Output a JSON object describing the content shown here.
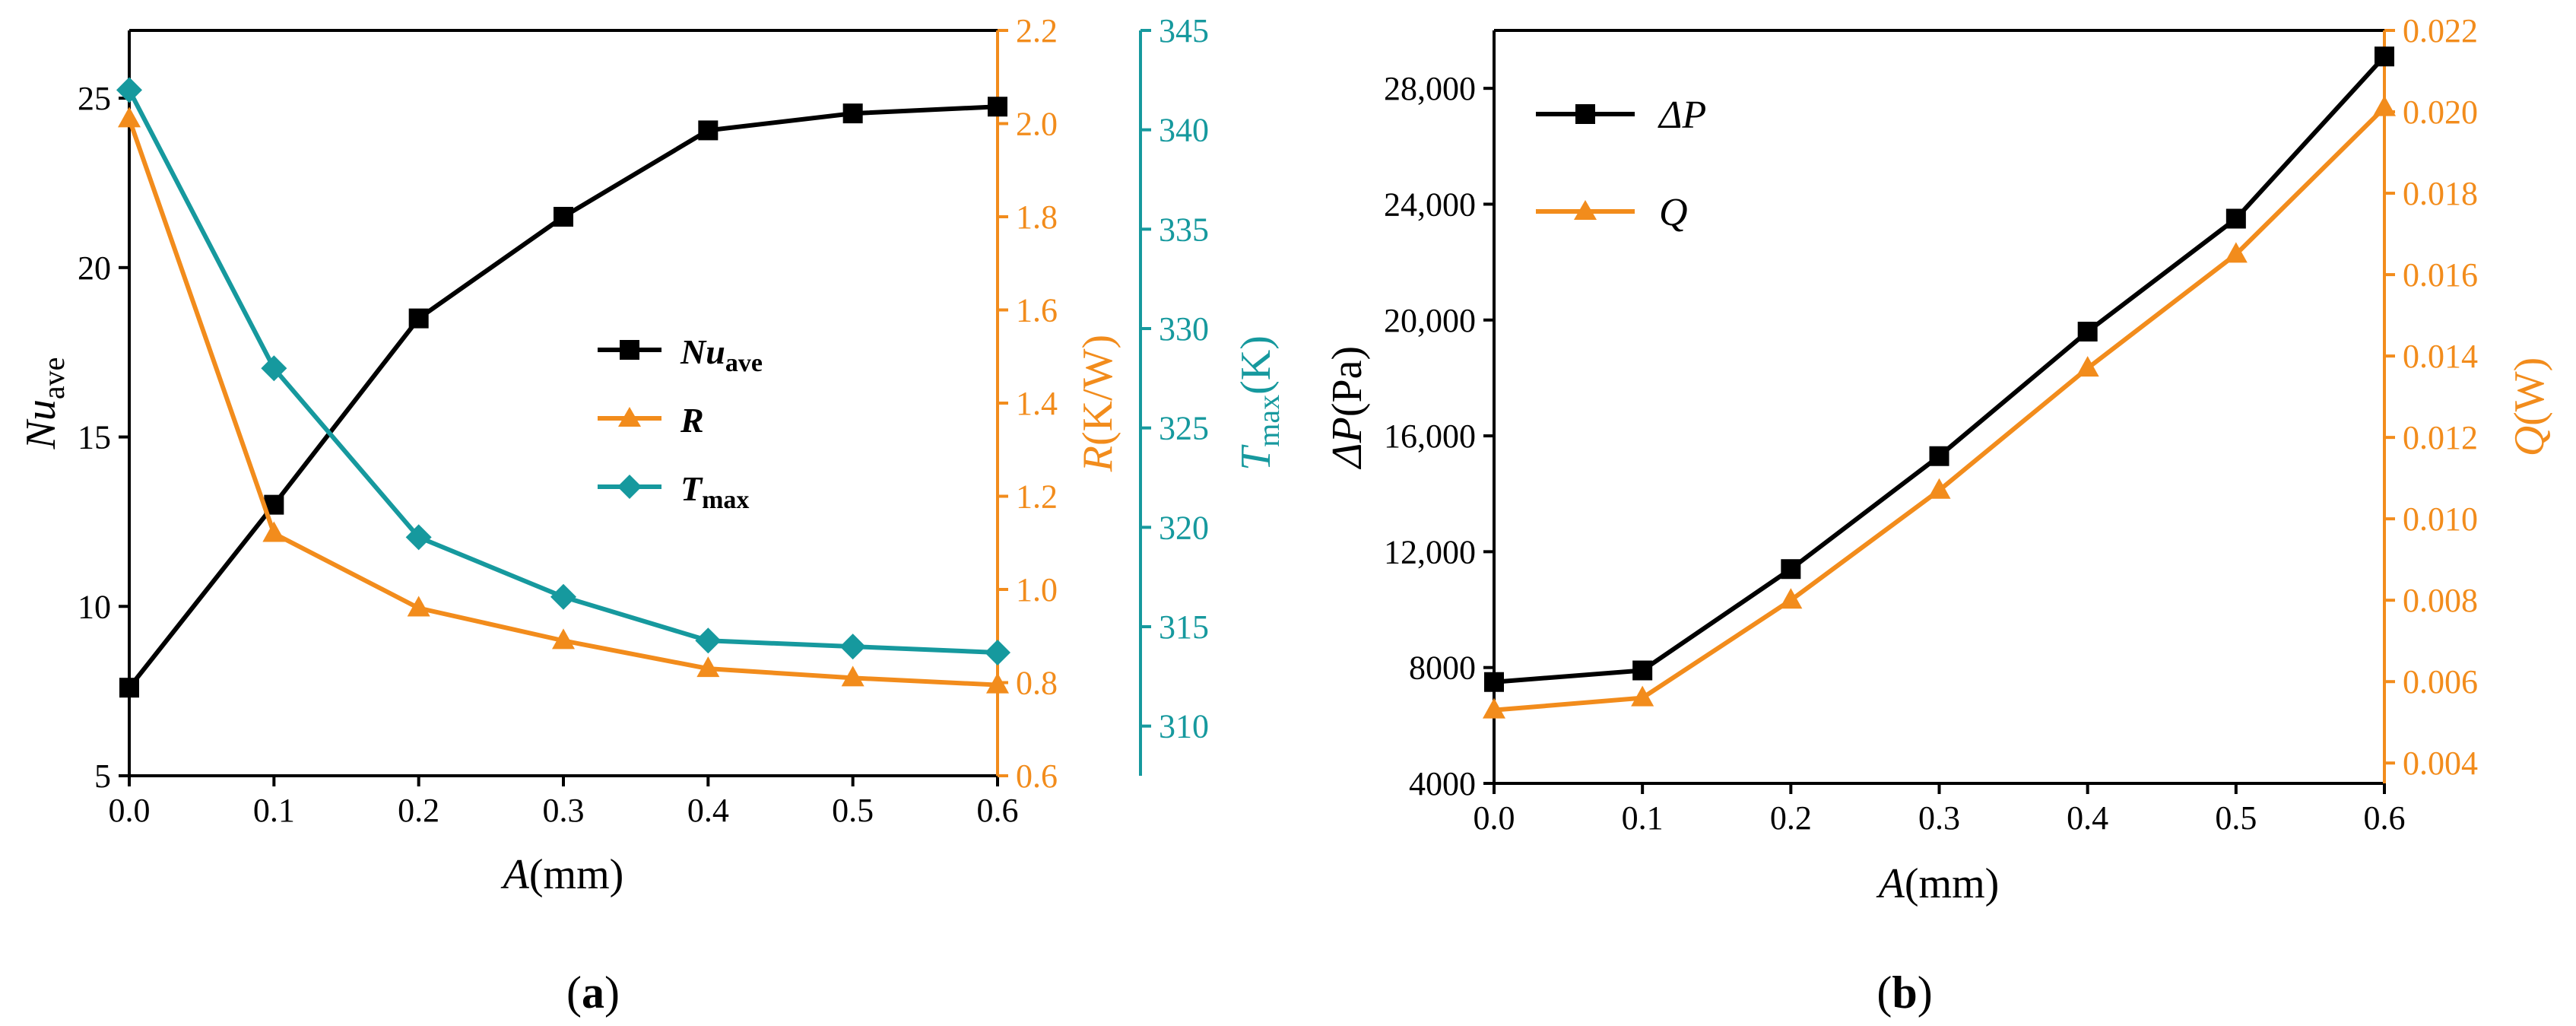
{
  "colors": {
    "black": "#000000",
    "orange": "#f28c1c",
    "teal": "#16999e"
  },
  "panel_labels": {
    "a": "a",
    "b": "b"
  },
  "chart_data": [
    {
      "id": "a",
      "type": "line",
      "title": "",
      "x": [
        0.0,
        0.1,
        0.2,
        0.3,
        0.4,
        0.5,
        0.6
      ],
      "xlim": [
        0.0,
        0.6
      ],
      "xticks": [
        "0.0",
        "0.1",
        "0.2",
        "0.3",
        "0.4",
        "0.5",
        "0.6"
      ],
      "xlabel": {
        "var": "A",
        "unit": "(mm)"
      },
      "axes": {
        "left": {
          "label": {
            "var": "Nu",
            "sub": "ave"
          },
          "ylim": [
            5,
            27
          ],
          "ticks": [
            5,
            10,
            15,
            20,
            25
          ],
          "tick_labels": [
            "5",
            "10",
            "15",
            "20",
            "25"
          ]
        },
        "right1": {
          "label": {
            "var": "R",
            "unit": "(K/W)"
          },
          "ylim": [
            0.6,
            2.2
          ],
          "ticks": [
            0.6,
            0.8,
            1.0,
            1.2,
            1.4,
            1.6,
            1.8,
            2.0,
            2.2
          ],
          "tick_labels": [
            "0.6",
            "0.8",
            "1.0",
            "1.2",
            "1.4",
            "1.6",
            "1.8",
            "2.0",
            "2.2"
          ]
        },
        "right2": {
          "label": {
            "var": "T",
            "sub": "max",
            "unit": "(K)"
          },
          "ylim": [
            307.5,
            345
          ],
          "ticks": [
            310,
            315,
            320,
            325,
            330,
            335,
            340,
            345
          ],
          "tick_labels": [
            "310",
            "315",
            "320",
            "325",
            "330",
            "335",
            "340",
            "345"
          ]
        }
      },
      "series": [
        {
          "name": "Nu",
          "sub": "ave",
          "axis": "left",
          "marker": "square",
          "color": "#000000",
          "values": [
            7.6,
            13.0,
            18.5,
            21.5,
            24.05,
            24.55,
            24.75
          ]
        },
        {
          "name": "R",
          "sub": "",
          "axis": "right1",
          "marker": "triangle",
          "color": "#f28c1c",
          "values": [
            2.01,
            1.12,
            0.96,
            0.89,
            0.83,
            0.81,
            0.795
          ]
        },
        {
          "name": "T",
          "sub": "max",
          "axis": "right2",
          "marker": "diamond",
          "color": "#16999e",
          "values": [
            342.0,
            328.0,
            319.5,
            316.5,
            314.3,
            314.0,
            313.7
          ]
        }
      ],
      "legend": {
        "position": "center-right"
      }
    },
    {
      "id": "b",
      "type": "line",
      "title": "",
      "x": [
        0.0,
        0.1,
        0.2,
        0.3,
        0.4,
        0.5,
        0.6
      ],
      "xlim": [
        0.0,
        0.6
      ],
      "xticks": [
        "0.0",
        "0.1",
        "0.2",
        "0.3",
        "0.4",
        "0.5",
        "0.6"
      ],
      "xlabel": {
        "var": "A",
        "unit": "(mm)"
      },
      "axes": {
        "left": {
          "label": {
            "var": "ΔP",
            "unit": "(Pa)"
          },
          "ylim": [
            4000,
            30000
          ],
          "ticks": [
            4000,
            8000,
            12000,
            16000,
            20000,
            24000,
            28000
          ],
          "tick_labels": [
            "4000",
            "8000",
            "12,000",
            "16,000",
            "20,000",
            "24,000",
            "28,000"
          ]
        },
        "right": {
          "label": {
            "var": "Q",
            "unit": "(W)"
          },
          "ylim": [
            0.0035,
            0.022
          ],
          "ticks": [
            0.004,
            0.006,
            0.008,
            0.01,
            0.012,
            0.014,
            0.016,
            0.018,
            0.02,
            0.022
          ],
          "tick_labels": [
            "0.004",
            "0.006",
            "0.008",
            "0.010",
            "0.012",
            "0.014",
            "0.016",
            "0.018",
            "0.020",
            "0.022"
          ]
        }
      },
      "series": [
        {
          "name": "ΔP",
          "axis": "left",
          "marker": "square",
          "color": "#000000",
          "values": [
            7500,
            7900,
            11400,
            15300,
            19600,
            23500,
            29100
          ]
        },
        {
          "name": "Q",
          "axis": "right",
          "marker": "triangle",
          "color": "#f28c1c",
          "values": [
            0.0053,
            0.0056,
            0.008,
            0.0107,
            0.0137,
            0.0165,
            0.0201
          ]
        }
      ],
      "legend": {
        "position": "top-left"
      }
    }
  ]
}
